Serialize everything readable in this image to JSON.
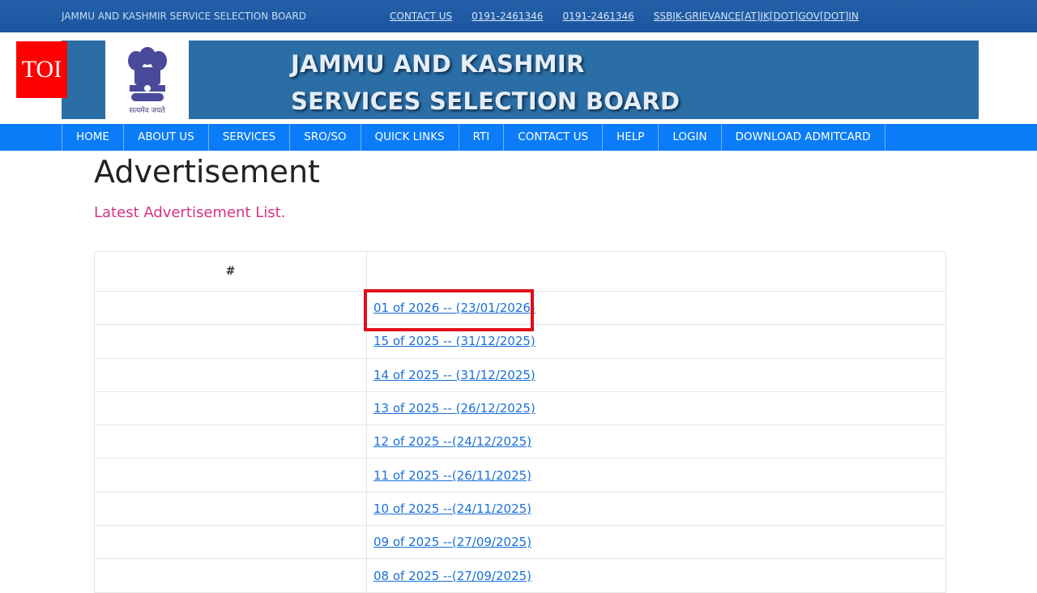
{
  "topbar": {
    "org": "JAMMU AND KASHMIR SERVICE SELECTION BOARD",
    "links": [
      "CONTACT US",
      "0191-2461346",
      "0191-2461346",
      "SSBJK-GRIEVANCE[AT]JK[DOT]GOV[DOT]IN"
    ]
  },
  "watermark": "TOI",
  "banner": {
    "line1": "JAMMU AND KASHMIR",
    "line2": "SERVICES SELECTION BOARD",
    "motto": "सत्यमेव जयते"
  },
  "nav": [
    "HOME",
    "ABOUT US",
    "SERVICES",
    "SRO/SO",
    "QUICK LINKS",
    "RTI",
    "CONTACT US",
    "HELP",
    "LOGIN",
    "DOWNLOAD ADMITCARD"
  ],
  "page": {
    "title": "Advertisement",
    "subtitle": "Latest Advertisement List."
  },
  "table": {
    "header": [
      "#",
      ""
    ],
    "rows": [
      "01 of 2026 -- (23/01/2026)",
      "15 of 2025 -- (31/12/2025)",
      "14 of 2025 -- (31/12/2025)",
      "13 of 2025 -- (26/12/2025)",
      "12 of 2025 --(24/12/2025)",
      "11 of 2025 --(26/11/2025)",
      "10 of 2025 --(24/11/2025)",
      "09 of 2025 --(27/09/2025)",
      "08 of 2025 --(27/09/2025)"
    ]
  },
  "highlight_color": "#e0101a"
}
